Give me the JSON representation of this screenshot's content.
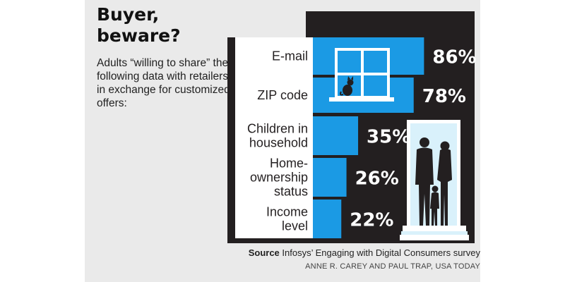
{
  "headline": "Buyer, beware?",
  "intro": "Adults “willing to share” the following data with retailers in exchange for customized offers:",
  "chart_data": {
    "type": "bar",
    "orientation": "horizontal",
    "categories": [
      "E-mail",
      "ZIP code",
      "Children in household",
      "Home-ownership status",
      "Income level"
    ],
    "category_lines": [
      [
        "E-mail"
      ],
      [
        "ZIP code"
      ],
      [
        "Children in",
        "household"
      ],
      [
        "Home-",
        "ownership",
        "status"
      ],
      [
        "Income",
        "level"
      ]
    ],
    "values": [
      86,
      78,
      35,
      26,
      22
    ],
    "value_labels": [
      "86%",
      "78%",
      "35%",
      "26%",
      "22%"
    ],
    "unit": "%",
    "xlim": [
      0,
      100
    ],
    "grid": false,
    "legend": "none"
  },
  "source_label": "Source",
  "source_text": " Infosys’ Engaging with Digital Consumers survey",
  "credit": "ANNE R. CAREY AND PAUL TRAP, USA TODAY",
  "colors": {
    "bar": "#1b9ae4",
    "house": "#231f20",
    "doorway": "#d9f1fb",
    "panel": "#eaeaea",
    "window_frame": "#ffffff",
    "window_glass": "#1b9ae4"
  }
}
